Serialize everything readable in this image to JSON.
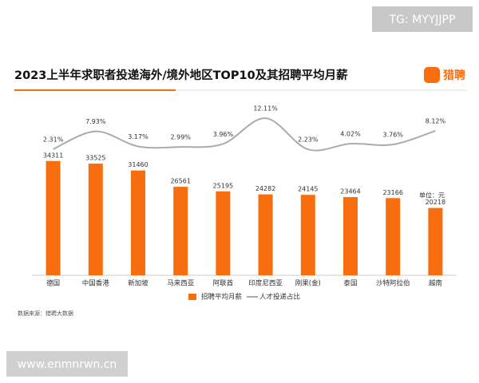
{
  "page": {
    "watermark": "TG: MYYJJPP",
    "logo": "猎聘",
    "url": "www.enmnrwn.cn"
  },
  "chart_data": {
    "type": "bar",
    "title": "2023上半年求职者投递海外/境外地区TOP10及其招聘平均月薪",
    "unit": "单位：元",
    "source": "数据来源：猎聘大数据",
    "categories": [
      "德国",
      "中国香港",
      "新加坡",
      "马来西亚",
      "阿联酋",
      "印度尼西亚",
      "刚果(金)",
      "泰国",
      "沙特阿拉伯",
      "越南"
    ],
    "series": [
      {
        "name": "招聘平均月薪",
        "type": "bar",
        "color": "#f86d0e",
        "values": [
          34311,
          33525,
          31460,
          26561,
          25195,
          24282,
          24145,
          23464,
          23166,
          20218
        ]
      },
      {
        "name": "人才投递占比",
        "type": "line",
        "axis": "y2",
        "color": "#ababab",
        "values": [
          2.31,
          7.93,
          3.17,
          2.99,
          3.96,
          12.11,
          2.23,
          4.02,
          3.76,
          8.12
        ],
        "value_labels": [
          "2.31%",
          "7.93%",
          "3.17%",
          "2.99%",
          "3.96%",
          "12.11%",
          "2.23%",
          "4.02%",
          "3.76%",
          "8.12%"
        ]
      }
    ],
    "ylim": [
      0,
      40000
    ],
    "y2lim": [
      0,
      12.5
    ],
    "legend": "bottom"
  }
}
